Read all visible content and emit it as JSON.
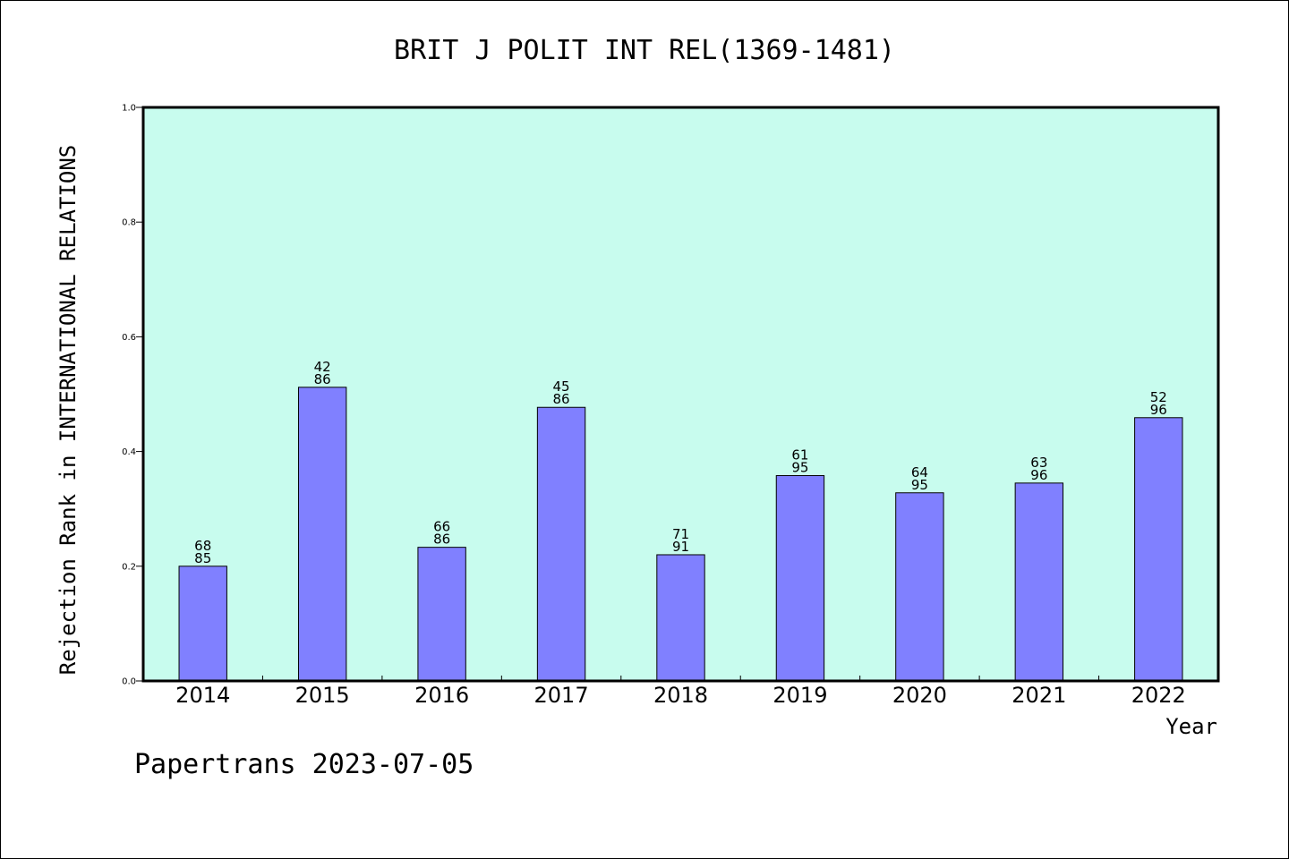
{
  "chart_data": {
    "type": "bar",
    "title": "BRIT J POLIT INT REL(1369-1481)",
    "xlabel": "Year",
    "ylabel": "Rejection Rank in INTERNATIONAL RELATIONS",
    "categories": [
      "2014",
      "2015",
      "2016",
      "2017",
      "2018",
      "2019",
      "2020",
      "2021",
      "2022"
    ],
    "values": [
      0.2,
      0.512,
      0.233,
      0.477,
      0.22,
      0.358,
      0.328,
      0.345,
      0.459
    ],
    "bar_labels": [
      [
        "68",
        "85"
      ],
      [
        "42",
        "86"
      ],
      [
        "66",
        "86"
      ],
      [
        "45",
        "86"
      ],
      [
        "71",
        "91"
      ],
      [
        "61",
        "95"
      ],
      [
        "64",
        "95"
      ],
      [
        "63",
        "96"
      ],
      [
        "52",
        "96"
      ]
    ],
    "ylim": [
      0,
      1.0
    ],
    "yticks": [
      "0.0",
      "0.2",
      "0.4",
      "0.6",
      "0.8",
      "1.0"
    ],
    "grid": false,
    "colors": {
      "plot_background": "#c8fcee",
      "bar_fill": "#8080ff",
      "bar_stroke": "#000000"
    }
  },
  "footer": "Papertrans 2023-07-05"
}
